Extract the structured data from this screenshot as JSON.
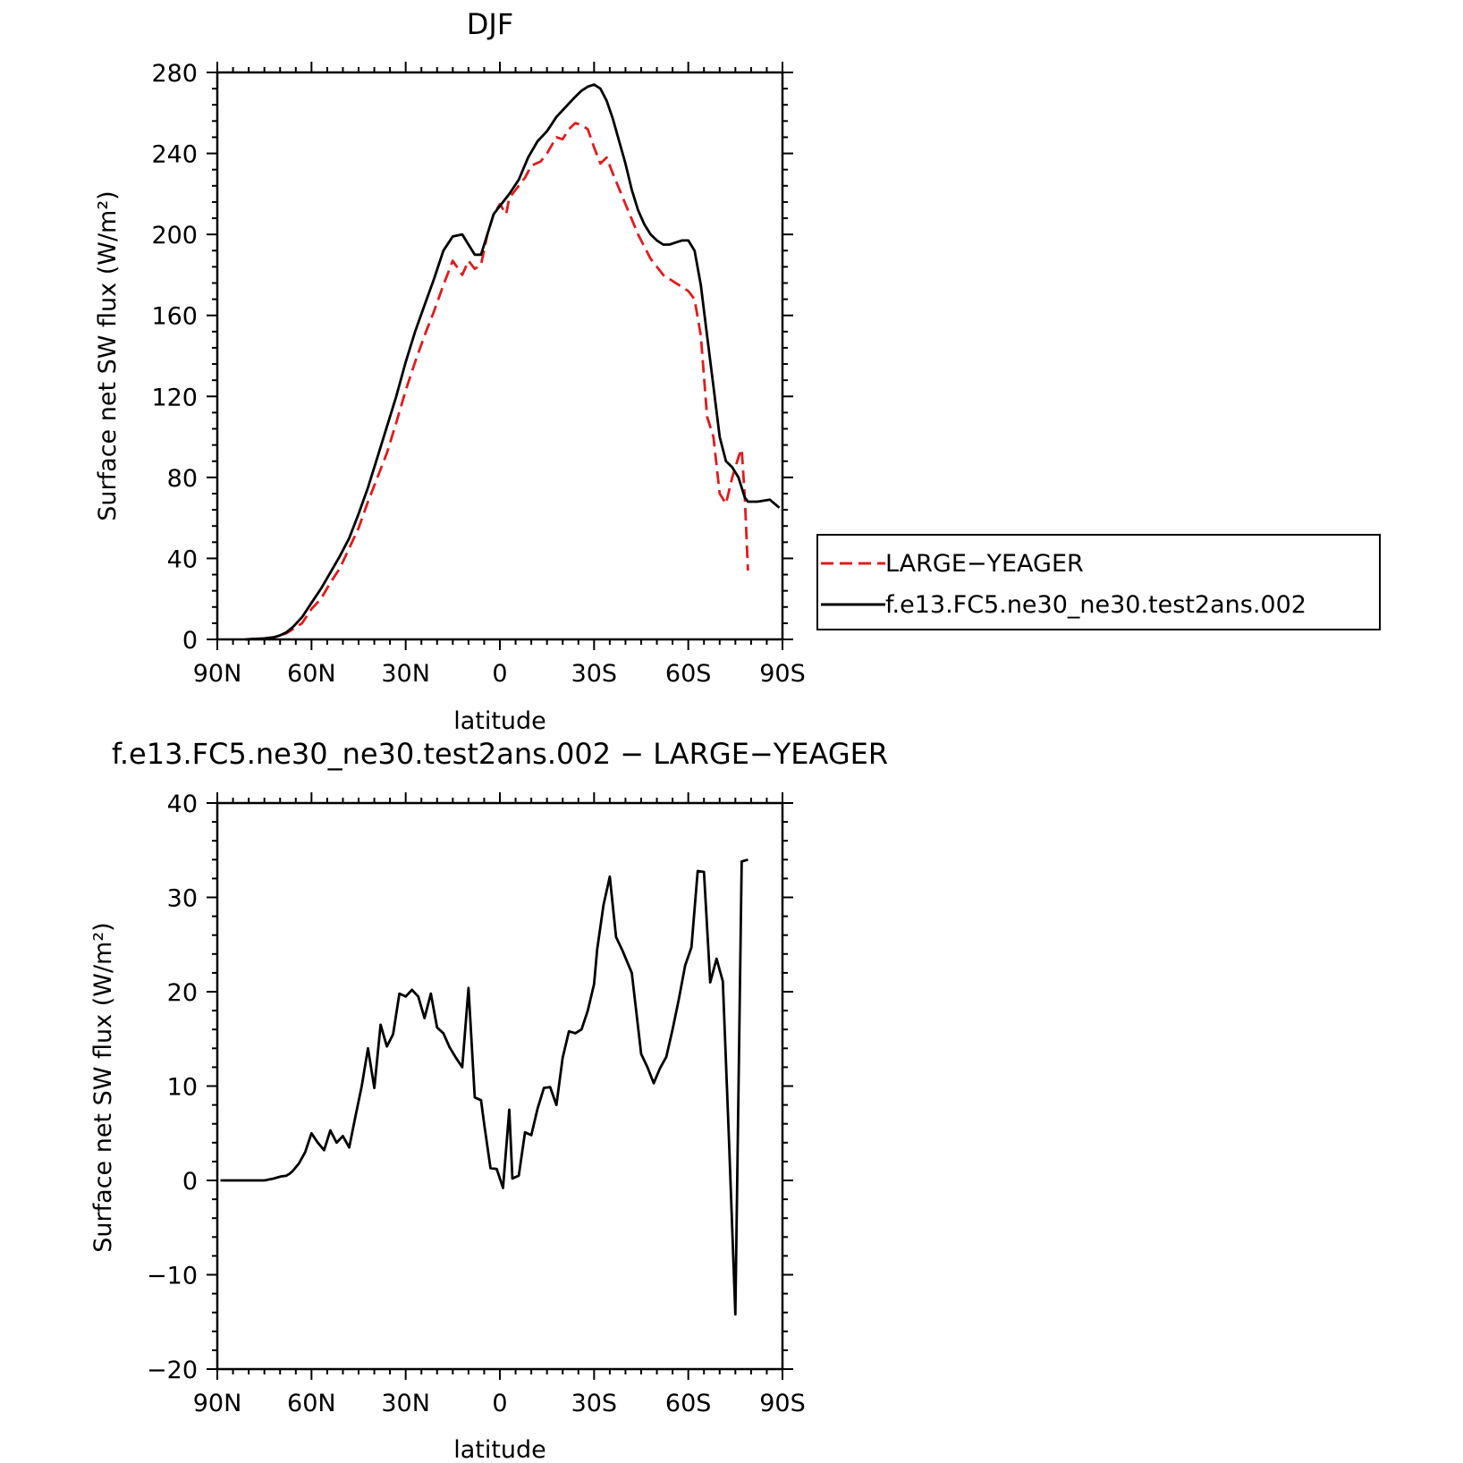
{
  "chart_data": [
    {
      "type": "line",
      "title": "DJF",
      "xlabel": "latitude",
      "ylabel": "Surface net SW flux (W/m²)",
      "xlim": [
        90,
        -90
      ],
      "ylim": [
        0,
        280
      ],
      "x_ticks": [
        90,
        60,
        30,
        0,
        -30,
        -60,
        -90
      ],
      "x_tick_labels": [
        "90N",
        "60N",
        "30N",
        "0",
        "30S",
        "60S",
        "90S"
      ],
      "y_ticks": [
        0,
        40,
        80,
        120,
        160,
        200,
        240,
        280
      ],
      "y_tick_labels": [
        "0",
        "40",
        "80",
        "120",
        "160",
        "200",
        "240",
        "280"
      ],
      "legend_position": "right",
      "series": [
        {
          "name": "LARGE−YEAGER",
          "color": "#e31a1c",
          "dash": "dashed",
          "x": [
            81,
            75,
            72,
            70,
            68,
            66,
            63,
            60,
            57,
            54,
            51,
            48,
            45,
            42,
            39,
            36,
            33,
            30,
            27,
            24,
            21,
            18,
            15,
            12,
            10,
            8,
            6,
            4,
            2,
            0,
            -2,
            -3,
            -5,
            -8,
            -10,
            -13,
            -15,
            -18,
            -20,
            -22,
            -24,
            -26,
            -28,
            -30,
            -32,
            -34,
            -36,
            -40,
            -44,
            -48,
            -52,
            -55,
            -60,
            -62,
            -64,
            -66,
            -68,
            -70,
            -72,
            -74,
            -76,
            -77,
            -78,
            -79
          ],
          "y": [
            0,
            0.5,
            1,
            2,
            3,
            5,
            8,
            15,
            20,
            28,
            35,
            45,
            55,
            68,
            80,
            92,
            107,
            123,
            137,
            150,
            162,
            175,
            187,
            180,
            187,
            183,
            185,
            200,
            210,
            215,
            210,
            218,
            222,
            228,
            234,
            236,
            240,
            248,
            247,
            252,
            255,
            254,
            252,
            243,
            235,
            238,
            230,
            215,
            200,
            188,
            180,
            177,
            172,
            168,
            150,
            110,
            100,
            72,
            67,
            80,
            90,
            94,
            70,
            34
          ]
        },
        {
          "name": "f.e13.FC5.ne30_ne30.test2ans.002",
          "color": "#000000",
          "dash": "solid",
          "x": [
            81,
            75,
            72,
            70,
            68,
            66,
            63,
            60,
            57,
            54,
            51,
            48,
            45,
            42,
            39,
            36,
            33,
            30,
            27,
            24,
            21,
            18,
            15,
            12,
            10,
            8,
            6,
            4,
            2,
            0,
            -3,
            -6,
            -9,
            -12,
            -15,
            -18,
            -21,
            -24,
            -26,
            -28,
            -30,
            -32,
            -34,
            -36,
            -38,
            -40,
            -42,
            -44,
            -46,
            -48,
            -50,
            -52,
            -54,
            -56,
            -58,
            -60,
            -62,
            -64,
            -66,
            -68,
            -70,
            -72,
            -74,
            -76,
            -78,
            -79,
            -82,
            -86,
            -89
          ],
          "y": [
            0,
            0.5,
            1,
            2,
            3.5,
            6,
            11,
            18,
            25,
            33,
            41,
            50,
            62,
            75,
            90,
            105,
            120,
            137,
            152,
            165,
            178,
            192,
            199,
            200,
            195,
            190,
            190,
            200,
            210,
            214,
            220,
            227,
            238,
            246,
            251,
            258,
            263,
            268,
            271,
            273,
            274,
            272,
            266,
            257,
            246,
            235,
            222,
            212,
            205,
            200,
            197,
            195,
            195,
            196,
            197,
            197,
            192,
            175,
            150,
            125,
            100,
            88,
            85,
            80,
            70,
            68,
            68,
            69,
            65
          ]
        }
      ]
    },
    {
      "type": "line",
      "title": "f.e13.FC5.ne30_ne30.test2ans.002 − LARGE−YEAGER",
      "xlabel": "latitude",
      "ylabel": "Surface net SW flux (W/m²)",
      "xlim": [
        90,
        -90
      ],
      "ylim": [
        -20,
        40
      ],
      "x_ticks": [
        90,
        60,
        30,
        0,
        -30,
        -60,
        -90
      ],
      "x_tick_labels": [
        "90N",
        "60N",
        "30N",
        "0",
        "30S",
        "60S",
        "90S"
      ],
      "y_ticks": [
        -20,
        -10,
        0,
        10,
        20,
        30,
        40
      ],
      "y_tick_labels": [
        "−20",
        "−10",
        "0",
        "10",
        "20",
        "30",
        "40"
      ],
      "series": [
        {
          "color": "#000000",
          "dash": "solid",
          "x": [
            89,
            80,
            75,
            72,
            70,
            68,
            67,
            66,
            64,
            62,
            60,
            58,
            56,
            54,
            52,
            50,
            48,
            46,
            44,
            42,
            40,
            38,
            36,
            34,
            32,
            30,
            28,
            26,
            24,
            22,
            20,
            18,
            16,
            14,
            12,
            10,
            8,
            6,
            5,
            3,
            1,
            -1,
            -3,
            -4,
            -6,
            -8,
            -10,
            -12,
            -14,
            -16,
            -18,
            -20,
            -22,
            -24,
            -26,
            -28,
            -30,
            -31,
            -33,
            -35,
            -37,
            -39,
            -42,
            -45,
            -47,
            -49,
            -51,
            -53,
            -55,
            -57,
            -59,
            -61,
            -63,
            -65,
            -67,
            -69,
            -71,
            -73,
            -75,
            -77,
            -79
          ],
          "y": [
            0,
            0,
            0,
            0.2,
            0.4,
            0.5,
            0.7,
            1,
            1.8,
            3,
            5,
            4,
            3.2,
            5.3,
            4,
            4.7,
            3.5,
            6.8,
            10,
            14,
            9.8,
            16.5,
            14.2,
            15.5,
            19.8,
            19.5,
            20.2,
            19.5,
            17.2,
            19.8,
            16.2,
            15.6,
            14.1,
            13,
            12,
            20.4,
            8.8,
            8.5,
            6,
            1.3,
            1.2,
            -0.8,
            7.5,
            0.2,
            0.5,
            5.1,
            4.8,
            7.6,
            9.8,
            9.9,
            8,
            13,
            15.8,
            15.6,
            16,
            18,
            20.8,
            24.5,
            29.2,
            32.2,
            25.8,
            24.4,
            22,
            13.4,
            12,
            10.3,
            11.9,
            13.1,
            16,
            19.2,
            22.8,
            24.7,
            32.8,
            32.7,
            21,
            23.5,
            21.1,
            4,
            -14.2,
            33.8,
            34
          ]
        }
      ]
    }
  ],
  "legend": {
    "items": [
      {
        "label": "LARGE−YEAGER",
        "color": "#e31a1c",
        "dash": "dashed"
      },
      {
        "label": "f.e13.FC5.ne30_ne30.test2ans.002",
        "color": "#000000",
        "dash": "solid"
      }
    ]
  }
}
